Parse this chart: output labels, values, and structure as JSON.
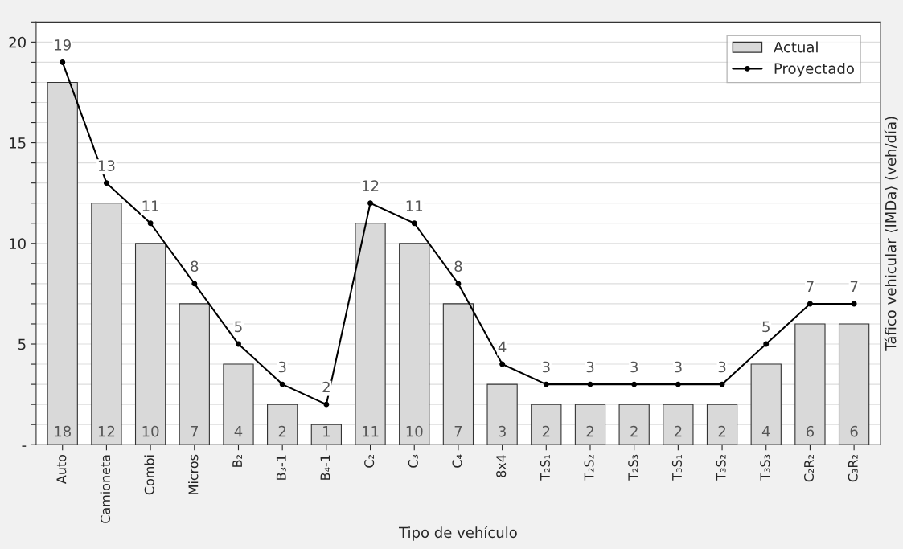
{
  "chart_data": {
    "type": "bar",
    "xlabel": "Tipo de vehículo",
    "ylabel": "Táfico vehicular ⟨IMDa⟩ (veh/día)",
    "categories": [
      "Auto",
      "Camioneta",
      "Combi",
      "Micros",
      "B₂",
      "B₃-1",
      "B₄-1",
      "C₂",
      "C₃",
      "C₄",
      "8x4",
      "T₂S₁",
      "T₂S₂",
      "T₂S₃",
      "T₃S₁",
      "T₃S₂",
      "T₃S₃",
      "C₂R₂",
      "C₃R₂"
    ],
    "series": [
      {
        "name": "Actual",
        "color": "#d9d9d9",
        "values": [
          18,
          12,
          10,
          7,
          4,
          2,
          1,
          11,
          10,
          7,
          3,
          2,
          2,
          2,
          2,
          2,
          4,
          6,
          6
        ]
      },
      {
        "name": "Proyectado",
        "type": "line",
        "color": "#000000",
        "marker": "circle",
        "values": [
          19,
          13,
          11,
          8,
          5,
          3,
          2,
          12,
          11,
          8,
          4,
          3,
          3,
          3,
          3,
          3,
          5,
          7,
          7
        ]
      }
    ],
    "ylim": [
      0,
      21
    ],
    "yticks": [
      {
        "value": 0,
        "label": "-"
      },
      {
        "value": 1,
        "label": null
      },
      {
        "value": 2,
        "label": null
      },
      {
        "value": 3,
        "label": null
      },
      {
        "value": 4,
        "label": null
      },
      5,
      {
        "value": 6,
        "label": null
      },
      {
        "value": 7,
        "label": null
      },
      {
        "value": 8,
        "label": null
      },
      {
        "value": 9,
        "label": null
      },
      10,
      {
        "value": 11,
        "label": null
      },
      {
        "value": 12,
        "label": null
      },
      {
        "value": 13,
        "label": null
      },
      {
        "value": 14,
        "label": null
      },
      15,
      {
        "value": 16,
        "label": null
      },
      {
        "value": 17,
        "label": null
      },
      {
        "value": 18,
        "label": null
      },
      {
        "value": 19,
        "label": null
      },
      20,
      {
        "value": 21,
        "label": null
      }
    ],
    "grid": "y",
    "legend": "top right",
    "data_labels": true
  }
}
